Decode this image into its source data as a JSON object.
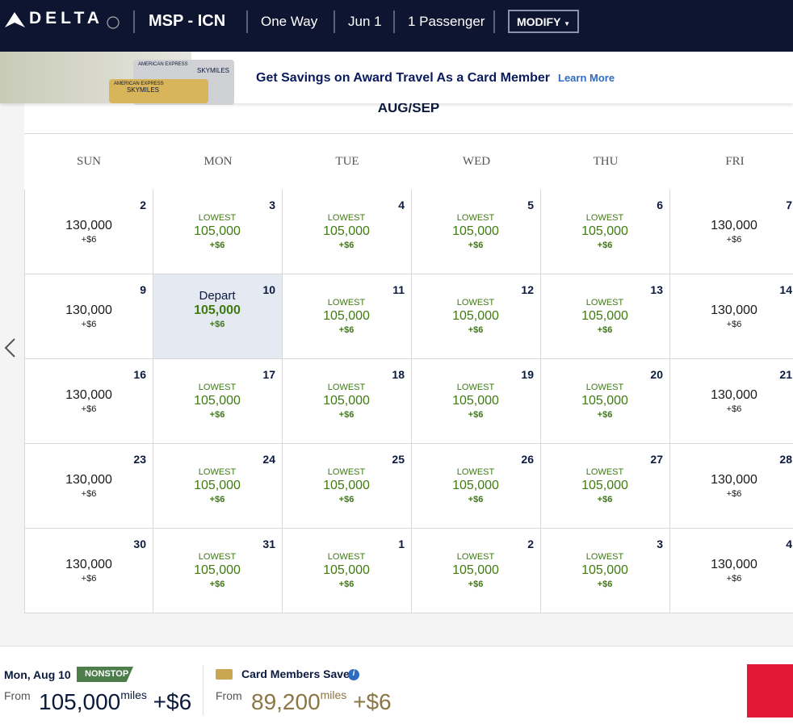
{
  "header": {
    "logo": "DELTA",
    "route": "MSP - ICN",
    "trip": "One Way",
    "date": "Jun 1",
    "passengers": "1 Passenger",
    "modify": "MODIFY"
  },
  "banner": {
    "cards": [
      {
        "issuer": "AMERICAN EXPRESS",
        "brand": "SKYMILES"
      },
      {
        "issuer": "AMERICAN EXPRESS",
        "brand": "SKYMILES"
      }
    ],
    "title": "Get Savings on Award Travel As a Card Member",
    "link": "Learn More"
  },
  "calendar": {
    "month": "AUG/SEP",
    "weekdays": [
      "SUN",
      "MON",
      "TUE",
      "WED",
      "THU",
      "FRI"
    ],
    "weeks": [
      [
        {
          "day": "2",
          "miles": "130,000",
          "fee": "+$6"
        },
        {
          "day": "3",
          "tag": "LOWEST",
          "miles": "105,000",
          "fee": "+$6"
        },
        {
          "day": "4",
          "tag": "LOWEST",
          "miles": "105,000",
          "fee": "+$6"
        },
        {
          "day": "5",
          "tag": "LOWEST",
          "miles": "105,000",
          "fee": "+$6"
        },
        {
          "day": "6",
          "tag": "LOWEST",
          "miles": "105,000",
          "fee": "+$6"
        },
        {
          "day": "7",
          "miles": "130,000",
          "fee": "+$6"
        }
      ],
      [
        {
          "day": "9",
          "miles": "130,000",
          "fee": "+$6"
        },
        {
          "day": "10",
          "tag": "Depart",
          "miles": "105,000",
          "fee": "+$6",
          "selected": true
        },
        {
          "day": "11",
          "tag": "LOWEST",
          "miles": "105,000",
          "fee": "+$6"
        },
        {
          "day": "12",
          "tag": "LOWEST",
          "miles": "105,000",
          "fee": "+$6"
        },
        {
          "day": "13",
          "tag": "LOWEST",
          "miles": "105,000",
          "fee": "+$6"
        },
        {
          "day": "14",
          "miles": "130,000",
          "fee": "+$6"
        }
      ],
      [
        {
          "day": "16",
          "miles": "130,000",
          "fee": "+$6"
        },
        {
          "day": "17",
          "tag": "LOWEST",
          "miles": "105,000",
          "fee": "+$6"
        },
        {
          "day": "18",
          "tag": "LOWEST",
          "miles": "105,000",
          "fee": "+$6"
        },
        {
          "day": "19",
          "tag": "LOWEST",
          "miles": "105,000",
          "fee": "+$6"
        },
        {
          "day": "20",
          "tag": "LOWEST",
          "miles": "105,000",
          "fee": "+$6"
        },
        {
          "day": "21",
          "miles": "130,000",
          "fee": "+$6"
        }
      ],
      [
        {
          "day": "23",
          "miles": "130,000",
          "fee": "+$6"
        },
        {
          "day": "24",
          "tag": "LOWEST",
          "miles": "105,000",
          "fee": "+$6"
        },
        {
          "day": "25",
          "tag": "LOWEST",
          "miles": "105,000",
          "fee": "+$6"
        },
        {
          "day": "26",
          "tag": "LOWEST",
          "miles": "105,000",
          "fee": "+$6"
        },
        {
          "day": "27",
          "tag": "LOWEST",
          "miles": "105,000",
          "fee": "+$6"
        },
        {
          "day": "28",
          "miles": "130,000",
          "fee": "+$6"
        }
      ],
      [
        {
          "day": "30",
          "miles": "130,000",
          "fee": "+$6"
        },
        {
          "day": "31",
          "tag": "LOWEST",
          "miles": "105,000",
          "fee": "+$6"
        },
        {
          "day": "1",
          "tag": "LOWEST",
          "miles": "105,000",
          "fee": "+$6"
        },
        {
          "day": "2",
          "tag": "LOWEST",
          "miles": "105,000",
          "fee": "+$6"
        },
        {
          "day": "3",
          "tag": "LOWEST",
          "miles": "105,000",
          "fee": "+$6"
        },
        {
          "day": "4",
          "miles": "130,000",
          "fee": "+$6"
        }
      ]
    ]
  },
  "summary": {
    "date": "Mon, Aug 10",
    "badge": "NONSTOP",
    "from": "From",
    "miles": "105,000",
    "unit": "miles",
    "fee": "+$6",
    "card": {
      "title": "Card Members Save",
      "from": "From",
      "miles": "89,200",
      "unit": "miles",
      "fee": "+$6"
    }
  }
}
